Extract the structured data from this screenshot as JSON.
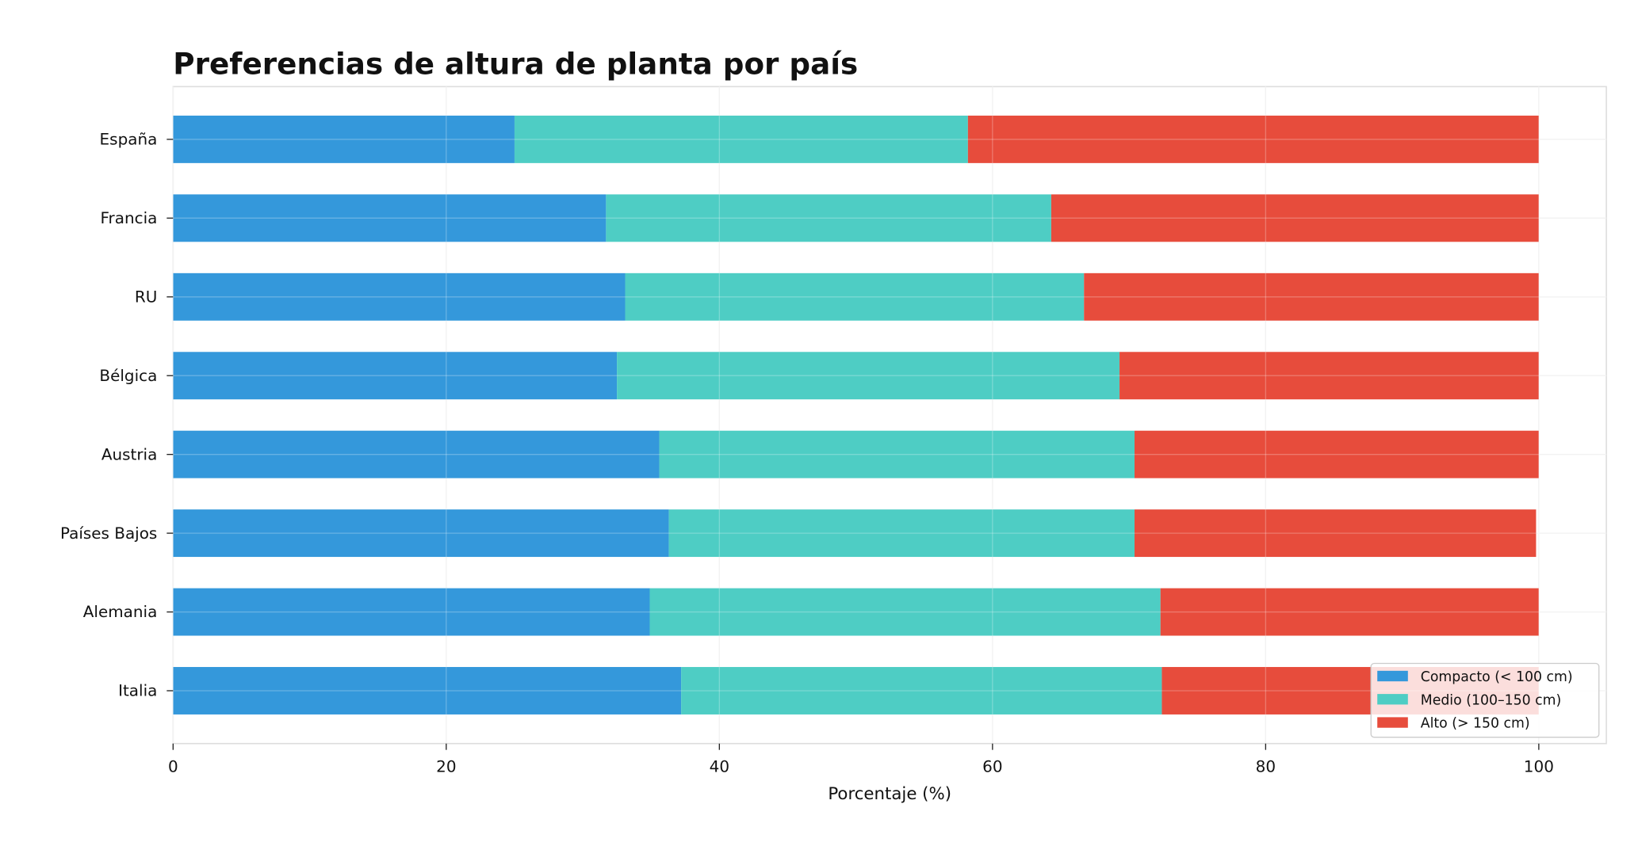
{
  "chart_data": {
    "type": "bar",
    "orientation": "horizontal",
    "stacked": true,
    "title": "Preferencias de altura de planta por país",
    "xlabel": "Porcentaje (%)",
    "ylabel": "",
    "xlim": [
      0,
      105
    ],
    "xticks": [
      "0",
      "20",
      "40",
      "60",
      "80",
      "100"
    ],
    "grid": true,
    "legend_position": "bottom-right",
    "categories": [
      "España",
      "Francia",
      "RU",
      "Bélgica",
      "Austria",
      "Países Bajos",
      "Alemania",
      "Italia"
    ],
    "series": [
      {
        "name": "Compacto (< 100 cm)",
        "color": "#3498db",
        "values": [
          25.0,
          31.7,
          33.1,
          32.5,
          35.6,
          36.3,
          34.9,
          37.2
        ]
      },
      {
        "name": "Medio (100–150 cm)",
        "color": "#4ecdc4",
        "values": [
          33.2,
          32.6,
          33.6,
          36.8,
          34.8,
          34.1,
          37.4,
          35.2
        ]
      },
      {
        "name": "Alto (> 150 cm)",
        "color": "#e74c3c",
        "values": [
          41.8,
          35.7,
          33.3,
          30.7,
          29.6,
          29.4,
          27.7,
          27.6
        ]
      }
    ]
  }
}
